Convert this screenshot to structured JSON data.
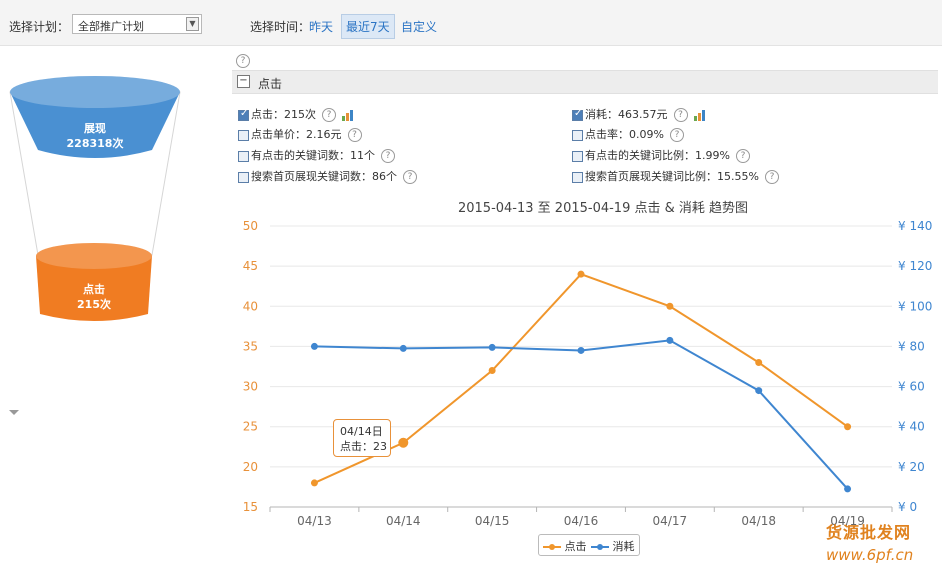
{
  "topbar": {
    "plan_label": "选择计划：",
    "plan_value": "全部推广计划",
    "time_label": "选择时间：",
    "time_options": [
      "昨天",
      "最近7天",
      "自定义"
    ]
  },
  "help_glyph": "?",
  "section": {
    "toggle": "−",
    "title": "点击"
  },
  "metrics": [
    {
      "label": "点击：215次",
      "checked": true,
      "icon": "bar-chart-icon"
    },
    {
      "label": "消耗：463.57元",
      "checked": true,
      "icon": "bar-chart-icon"
    },
    {
      "label": "点击单价：2.16元",
      "checked": false
    },
    {
      "label": "点击率：0.09%",
      "checked": false
    },
    {
      "label": "有点击的关键词数：11个",
      "checked": false
    },
    {
      "label": "有点击的关键词比例：1.99%",
      "checked": false
    },
    {
      "label": "搜索首页展现关键词数：86个",
      "checked": false
    },
    {
      "label": "搜索首页展现关键词比例：15.55%",
      "checked": false
    }
  ],
  "funnel": {
    "top": {
      "name": "展现",
      "value": "228318次",
      "color": "#4a90d2"
    },
    "bottom": {
      "name": "点击",
      "value": "215次",
      "color": "#f07c22"
    }
  },
  "chart_data": {
    "type": "line",
    "title": "2015-04-13 至 2015-04-19 点击 & 消耗 趋势图",
    "categories": [
      "04/13",
      "04/14",
      "04/15",
      "04/16",
      "04/17",
      "04/18",
      "04/19"
    ],
    "series": [
      {
        "name": "点击",
        "axis": "left",
        "color": "#f0962c",
        "values": [
          18,
          23,
          32,
          44,
          40,
          33,
          25
        ]
      },
      {
        "name": "消耗",
        "axis": "right",
        "color": "#3f86d0",
        "values": [
          80,
          79,
          79.5,
          78,
          83,
          58,
          9
        ]
      }
    ],
    "y_left": {
      "min": 15,
      "max": 50,
      "ticks": [
        50,
        45,
        40,
        35,
        30,
        25,
        20,
        15
      ]
    },
    "y_right": {
      "min": 0,
      "max": 140,
      "ticks": [
        "¥ 140",
        "¥ 120",
        "¥ 100",
        "¥ 80",
        "¥ 60",
        "¥ 40",
        "¥ 20",
        "¥ 0"
      ]
    },
    "grid": true,
    "legend": "bottom-center"
  },
  "tooltip": {
    "date": "04/14日",
    "text": "点击：23",
    "series": "点击",
    "index": 1
  },
  "watermark": {
    "line1": "货源批发网",
    "line2": "www.6pf.cn"
  }
}
